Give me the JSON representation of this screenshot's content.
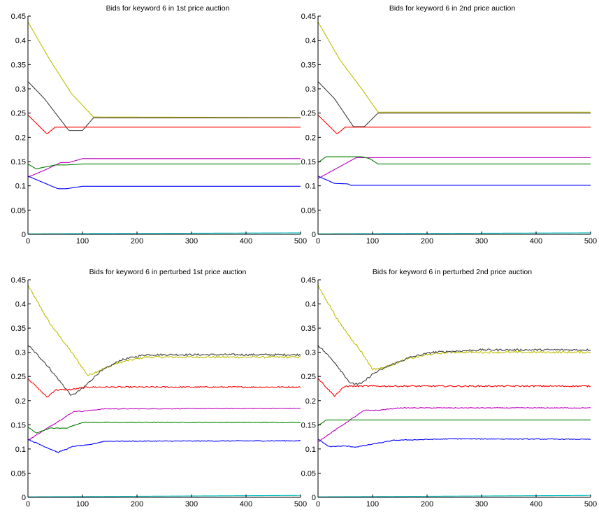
{
  "figure": {
    "background": "#ffffff",
    "axis_color": "#000000"
  },
  "chart_data": [
    {
      "type": "line",
      "title": "Bids for keyword 6 in 1st price auction",
      "xlim": [
        0,
        500
      ],
      "ylim": [
        0,
        0.45
      ],
      "xticks": [
        0,
        100,
        200,
        300,
        400,
        500
      ],
      "yticks": [
        0,
        0.05,
        0.1,
        0.15,
        0.2,
        0.25,
        0.3,
        0.35,
        0.4,
        0.45
      ],
      "xtick_labels": [
        "0",
        "100",
        "200",
        "300",
        "400",
        "500"
      ],
      "ytick_labels": [
        "0",
        "0.05",
        "0.1",
        "0.15",
        "0.2",
        "0.25",
        "0.3",
        "0.35",
        "0.4",
        "0.45"
      ],
      "grid": false,
      "series": [
        {
          "color": "#bfbf00",
          "noise": 0,
          "points": [
            [
              0,
              0.438
            ],
            [
              40,
              0.36
            ],
            [
              80,
              0.29
            ],
            [
              120,
              0.242
            ],
            [
              500,
              0.241
            ]
          ]
        },
        {
          "color": "#404040",
          "noise": 0,
          "points": [
            [
              0,
              0.315
            ],
            [
              30,
              0.28
            ],
            [
              75,
              0.214
            ],
            [
              100,
              0.214
            ],
            [
              120,
              0.24
            ],
            [
              500,
              0.24
            ]
          ]
        },
        {
          "color": "#ff0000",
          "noise": 0,
          "points": [
            [
              0,
              0.246
            ],
            [
              35,
              0.207
            ],
            [
              50,
              0.221
            ],
            [
              500,
              0.221
            ]
          ]
        },
        {
          "color": "#bf00bf",
          "noise": 0,
          "points": [
            [
              0,
              0.118
            ],
            [
              30,
              0.132
            ],
            [
              60,
              0.148
            ],
            [
              75,
              0.148
            ],
            [
              100,
              0.156
            ],
            [
              500,
              0.156
            ]
          ]
        },
        {
          "color": "#008000",
          "noise": 0,
          "points": [
            [
              0,
              0.145
            ],
            [
              15,
              0.135
            ],
            [
              50,
              0.143
            ],
            [
              70,
              0.143
            ],
            [
              100,
              0.145
            ],
            [
              500,
              0.145
            ]
          ]
        },
        {
          "color": "#0000ff",
          "noise": 0,
          "points": [
            [
              0,
              0.12
            ],
            [
              55,
              0.094
            ],
            [
              70,
              0.094
            ],
            [
              100,
              0.099
            ],
            [
              500,
              0.099
            ]
          ]
        },
        {
          "color": "#00bfbf",
          "noise": 0,
          "points": [
            [
              0,
              0.001
            ],
            [
              500,
              0.003
            ]
          ]
        }
      ]
    },
    {
      "type": "line",
      "title": "Bids for keyword 6 in 2nd price auction",
      "xlim": [
        0,
        500
      ],
      "ylim": [
        0,
        0.45
      ],
      "xticks": [
        0,
        100,
        200,
        300,
        400,
        500
      ],
      "yticks": [
        0,
        0.05,
        0.1,
        0.15,
        0.2,
        0.25,
        0.3,
        0.35,
        0.4,
        0.45
      ],
      "xtick_labels": [
        "0",
        "100",
        "200",
        "300",
        "400",
        "500"
      ],
      "ytick_labels": [
        "0",
        "0.05",
        "0.1",
        "0.15",
        "0.2",
        "0.25",
        "0.3",
        "0.35",
        "0.4",
        "0.45"
      ],
      "grid": false,
      "series": [
        {
          "color": "#bfbf00",
          "noise": 0,
          "points": [
            [
              0,
              0.438
            ],
            [
              40,
              0.36
            ],
            [
              80,
              0.3
            ],
            [
              110,
              0.252
            ],
            [
              500,
              0.252
            ]
          ]
        },
        {
          "color": "#404040",
          "noise": 0,
          "points": [
            [
              0,
              0.315
            ],
            [
              30,
              0.28
            ],
            [
              65,
              0.222
            ],
            [
              85,
              0.222
            ],
            [
              110,
              0.25
            ],
            [
              500,
              0.25
            ]
          ]
        },
        {
          "color": "#ff0000",
          "noise": 0,
          "points": [
            [
              0,
              0.246
            ],
            [
              35,
              0.207
            ],
            [
              50,
              0.221
            ],
            [
              500,
              0.221
            ]
          ]
        },
        {
          "color": "#bf00bf",
          "noise": 0,
          "points": [
            [
              0,
              0.115
            ],
            [
              70,
              0.158
            ],
            [
              85,
              0.158
            ],
            [
              90,
              0.158
            ],
            [
              500,
              0.158
            ]
          ]
        },
        {
          "color": "#008000",
          "noise": 0,
          "points": [
            [
              0,
              0.148
            ],
            [
              15,
              0.16
            ],
            [
              80,
              0.16
            ],
            [
              95,
              0.156
            ],
            [
              110,
              0.145
            ],
            [
              500,
              0.145
            ]
          ]
        },
        {
          "color": "#0000ff",
          "noise": 0,
          "points": [
            [
              0,
              0.12
            ],
            [
              30,
              0.105
            ],
            [
              55,
              0.104
            ],
            [
              60,
              0.101
            ],
            [
              500,
              0.101
            ]
          ]
        },
        {
          "color": "#00bfbf",
          "noise": 0,
          "points": [
            [
              0,
              0.001
            ],
            [
              500,
              0.003
            ]
          ]
        }
      ]
    },
    {
      "type": "line",
      "title": "Bids for keyword 6 in perturbed 1st price auction",
      "xlim": [
        0,
        500
      ],
      "ylim": [
        0,
        0.45
      ],
      "xticks": [
        0,
        100,
        200,
        300,
        400,
        500
      ],
      "yticks": [
        0,
        0.05,
        0.1,
        0.15,
        0.2,
        0.25,
        0.3,
        0.35,
        0.4,
        0.45
      ],
      "xtick_labels": [
        "0",
        "100",
        "200",
        "300",
        "400",
        "500"
      ],
      "ytick_labels": [
        "0",
        "0.05",
        "0.1",
        "0.15",
        "0.2",
        "0.25",
        "0.3",
        "0.35",
        "0.4",
        "0.45"
      ],
      "grid": false,
      "series": [
        {
          "color": "#bfbf00",
          "noise": 0.002,
          "points": [
            [
              0,
              0.438
            ],
            [
              40,
              0.36
            ],
            [
              80,
              0.3
            ],
            [
              110,
              0.252
            ],
            [
              130,
              0.262
            ],
            [
              160,
              0.276
            ],
            [
              180,
              0.282
            ],
            [
              215,
              0.29
            ],
            [
              500,
              0.29
            ]
          ]
        },
        {
          "color": "#404040",
          "noise": 0.002,
          "points": [
            [
              0,
              0.315
            ],
            [
              30,
              0.28
            ],
            [
              80,
              0.21
            ],
            [
              100,
              0.225
            ],
            [
              130,
              0.258
            ],
            [
              170,
              0.284
            ],
            [
              215,
              0.295
            ],
            [
              500,
              0.295
            ]
          ]
        },
        {
          "color": "#ff0000",
          "noise": 0.0015,
          "points": [
            [
              0,
              0.246
            ],
            [
              35,
              0.207
            ],
            [
              50,
              0.222
            ],
            [
              80,
              0.223
            ],
            [
              110,
              0.228
            ],
            [
              500,
              0.228
            ]
          ]
        },
        {
          "color": "#bf00bf",
          "noise": 0.0008,
          "points": [
            [
              0,
              0.118
            ],
            [
              85,
              0.178
            ],
            [
              100,
              0.178
            ],
            [
              140,
              0.183
            ],
            [
              500,
              0.184
            ]
          ]
        },
        {
          "color": "#008000",
          "noise": 0.0008,
          "points": [
            [
              0,
              0.145
            ],
            [
              15,
              0.133
            ],
            [
              40,
              0.143
            ],
            [
              70,
              0.143
            ],
            [
              100,
              0.155
            ],
            [
              500,
              0.155
            ]
          ]
        },
        {
          "color": "#0000ff",
          "noise": 0.0008,
          "points": [
            [
              0,
              0.12
            ],
            [
              55,
              0.093
            ],
            [
              85,
              0.106
            ],
            [
              110,
              0.108
            ],
            [
              140,
              0.116
            ],
            [
              500,
              0.117
            ]
          ]
        },
        {
          "color": "#00bfbf",
          "noise": 0,
          "points": [
            [
              0,
              0.001
            ],
            [
              500,
              0.004
            ]
          ]
        }
      ]
    },
    {
      "type": "line",
      "title": "Bids for keyword 6 in perturbed 2nd price auction",
      "xlim": [
        0,
        500
      ],
      "ylim": [
        0,
        0.45
      ],
      "xticks": [
        0,
        100,
        200,
        300,
        400,
        500
      ],
      "yticks": [
        0,
        0.05,
        0.1,
        0.15,
        0.2,
        0.25,
        0.3,
        0.35,
        0.4,
        0.45
      ],
      "xtick_labels": [
        "0",
        "100",
        "200",
        "300",
        "400",
        "500"
      ],
      "ytick_labels": [
        "0",
        "0.05",
        "0.1",
        "0.15",
        "0.2",
        "0.25",
        "0.3",
        "0.35",
        "0.4",
        "0.45"
      ],
      "grid": false,
      "series": [
        {
          "color": "#bfbf00",
          "noise": 0.002,
          "points": [
            [
              0,
              0.438
            ],
            [
              40,
              0.36
            ],
            [
              80,
              0.3
            ],
            [
              100,
              0.265
            ],
            [
              120,
              0.268
            ],
            [
              160,
              0.285
            ],
            [
              200,
              0.295
            ],
            [
              240,
              0.3
            ],
            [
              500,
              0.3
            ]
          ]
        },
        {
          "color": "#404040",
          "noise": 0.002,
          "points": [
            [
              0,
              0.315
            ],
            [
              30,
              0.28
            ],
            [
              60,
              0.235
            ],
            [
              80,
              0.235
            ],
            [
              100,
              0.255
            ],
            [
              130,
              0.272
            ],
            [
              170,
              0.29
            ],
            [
              210,
              0.3
            ],
            [
              300,
              0.305
            ],
            [
              500,
              0.305
            ]
          ]
        },
        {
          "color": "#ff0000",
          "noise": 0.0015,
          "points": [
            [
              0,
              0.246
            ],
            [
              30,
              0.21
            ],
            [
              50,
              0.23
            ],
            [
              500,
              0.23
            ]
          ]
        },
        {
          "color": "#bf00bf",
          "noise": 0.0008,
          "points": [
            [
              0,
              0.115
            ],
            [
              85,
              0.18
            ],
            [
              110,
              0.18
            ],
            [
              150,
              0.185
            ],
            [
              500,
              0.185
            ]
          ]
        },
        {
          "color": "#008000",
          "noise": 0,
          "points": [
            [
              0,
              0.148
            ],
            [
              15,
              0.16
            ],
            [
              500,
              0.16
            ]
          ]
        },
        {
          "color": "#0000ff",
          "noise": 0.0008,
          "points": [
            [
              0,
              0.12
            ],
            [
              20,
              0.105
            ],
            [
              50,
              0.106
            ],
            [
              70,
              0.104
            ],
            [
              100,
              0.11
            ],
            [
              140,
              0.118
            ],
            [
              250,
              0.121
            ],
            [
              500,
              0.12
            ]
          ]
        },
        {
          "color": "#00bfbf",
          "noise": 0,
          "points": [
            [
              0,
              0.001
            ],
            [
              500,
              0.004
            ]
          ]
        }
      ]
    }
  ]
}
